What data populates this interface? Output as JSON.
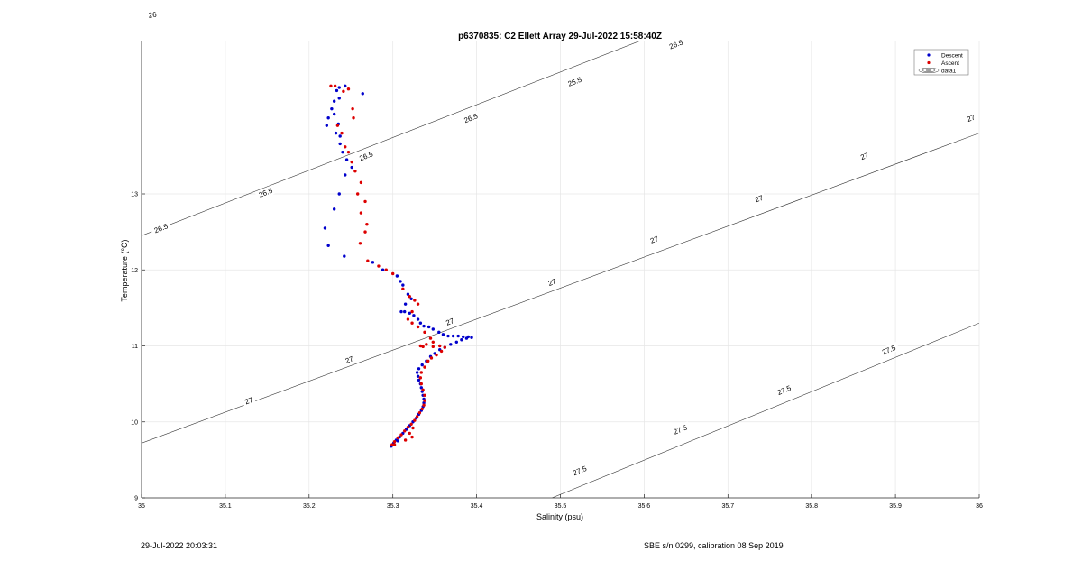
{
  "footer": {
    "left": "29-Jul-2022 20:03:31",
    "right": "SBE s/n 0299, calibration 08 Sep 2019"
  },
  "chart_data": {
    "type": "scatter",
    "title": "p6370835: C2 Ellett Array 29-Jul-2022 15:58:40Z",
    "xlabel": "Salinity (psu)",
    "ylabel": "Temperature (°C)",
    "xlim": [
      35,
      36
    ],
    "ylim": [
      9,
      15.4
    ],
    "xticks": [
      35,
      35.1,
      35.2,
      35.3,
      35.4,
      35.5,
      35.6,
      35.7,
      35.8,
      35.9,
      36
    ],
    "xtick_labels": [
      "35",
      "35.1",
      "35.2",
      "35.3",
      "35.4",
      "35.5",
      "35.6",
      "35.7",
      "35.8",
      "35.9",
      "36"
    ],
    "yticks": [
      9,
      10,
      11,
      12,
      13
    ],
    "ytick_labels": [
      "9",
      "10",
      "11",
      "12",
      "13"
    ],
    "grid": true,
    "legend": {
      "position": "top-right",
      "entries": [
        "Descent",
        "Ascent",
        "data1"
      ]
    },
    "contours": [
      {
        "label": "26",
        "points": [
          [
            35.0,
            15.35
          ],
          [
            35.035,
            15.4
          ]
        ],
        "label_positions": [
          [
            35.013,
            15.36
          ]
        ]
      },
      {
        "label": "26.5",
        "points": [
          [
            35.0,
            12.45
          ],
          [
            35.68,
            15.38
          ]
        ],
        "label_positions": [
          [
            35.023,
            12.55
          ],
          [
            35.148,
            13.02
          ],
          [
            35.268,
            13.5
          ],
          [
            35.393,
            14.0
          ],
          [
            35.517,
            14.48
          ],
          [
            35.638,
            14.97
          ]
        ]
      },
      {
        "label": "27",
        "points": [
          [
            35.0,
            9.72
          ],
          [
            36.0,
            13.8
          ]
        ],
        "label_positions": [
          [
            35.128,
            10.28
          ],
          [
            35.248,
            10.82
          ],
          [
            35.368,
            11.32
          ],
          [
            35.49,
            11.84
          ],
          [
            35.612,
            12.4
          ],
          [
            35.737,
            12.94
          ],
          [
            35.863,
            13.5
          ],
          [
            35.99,
            14.0
          ]
        ]
      },
      {
        "label": "27.5",
        "points": [
          [
            35.49,
            9.0
          ],
          [
            36.0,
            11.3
          ]
        ],
        "label_positions": [
          [
            35.523,
            9.36
          ],
          [
            35.643,
            9.9
          ],
          [
            35.767,
            10.42
          ],
          [
            35.892,
            10.95
          ]
        ]
      }
    ],
    "series": [
      {
        "name": "Descent",
        "color": "#0000cc",
        "points": [
          [
            35.236,
            14.4
          ],
          [
            35.243,
            14.42
          ],
          [
            35.233,
            14.36
          ],
          [
            35.264,
            14.32
          ],
          [
            35.236,
            14.26
          ],
          [
            35.23,
            14.22
          ],
          [
            35.227,
            14.12
          ],
          [
            35.23,
            14.05
          ],
          [
            35.223,
            14.0
          ],
          [
            35.221,
            13.9
          ],
          [
            35.235,
            13.92
          ],
          [
            35.232,
            13.8
          ],
          [
            35.237,
            13.76
          ],
          [
            35.237,
            13.66
          ],
          [
            35.24,
            13.55
          ],
          [
            35.245,
            13.45
          ],
          [
            35.251,
            13.35
          ],
          [
            35.243,
            13.25
          ],
          [
            35.236,
            13.0
          ],
          [
            35.23,
            12.8
          ],
          [
            35.219,
            12.55
          ],
          [
            35.223,
            12.32
          ],
          [
            35.242,
            12.18
          ],
          [
            35.276,
            12.1
          ],
          [
            35.288,
            12.0
          ],
          [
            35.305,
            11.92
          ],
          [
            35.309,
            11.85
          ],
          [
            35.312,
            11.8
          ],
          [
            35.318,
            11.68
          ],
          [
            35.322,
            11.62
          ],
          [
            35.315,
            11.55
          ],
          [
            35.31,
            11.45
          ],
          [
            35.314,
            11.45
          ],
          [
            35.32,
            11.43
          ],
          [
            35.325,
            11.4
          ],
          [
            35.33,
            11.35
          ],
          [
            35.333,
            11.3
          ],
          [
            35.337,
            11.26
          ],
          [
            35.343,
            11.25
          ],
          [
            35.348,
            11.22
          ],
          [
            35.355,
            11.18
          ],
          [
            35.36,
            11.15
          ],
          [
            35.366,
            11.13
          ],
          [
            35.372,
            11.13
          ],
          [
            35.378,
            11.13
          ],
          [
            35.384,
            11.12
          ],
          [
            35.39,
            11.12
          ],
          [
            35.394,
            11.11
          ],
          [
            35.388,
            11.1
          ],
          [
            35.382,
            11.08
          ],
          [
            35.376,
            11.05
          ],
          [
            35.369,
            11.02
          ],
          [
            35.362,
            10.98
          ],
          [
            35.356,
            10.95
          ],
          [
            35.35,
            10.9
          ],
          [
            35.345,
            10.86
          ],
          [
            35.34,
            10.8
          ],
          [
            35.335,
            10.75
          ],
          [
            35.331,
            10.7
          ],
          [
            35.329,
            10.65
          ],
          [
            35.33,
            10.6
          ],
          [
            35.331,
            10.55
          ],
          [
            35.333,
            10.5
          ],
          [
            35.334,
            10.45
          ],
          [
            35.335,
            10.4
          ],
          [
            35.336,
            10.35
          ],
          [
            35.337,
            10.3
          ],
          [
            35.337,
            10.25
          ],
          [
            35.336,
            10.2
          ],
          [
            35.334,
            10.15
          ],
          [
            35.331,
            10.1
          ],
          [
            35.328,
            10.05
          ],
          [
            35.324,
            10.0
          ],
          [
            35.32,
            9.95
          ],
          [
            35.316,
            9.9
          ],
          [
            35.312,
            9.85
          ],
          [
            35.308,
            9.8
          ],
          [
            35.304,
            9.76
          ],
          [
            35.301,
            9.72
          ],
          [
            35.298,
            9.68
          ],
          [
            35.3,
            9.7
          ],
          [
            35.306,
            9.75
          ]
        ]
      },
      {
        "name": "Ascent",
        "color": "#dd0000",
        "points": [
          [
            35.226,
            14.42
          ],
          [
            35.231,
            14.42
          ],
          [
            35.241,
            14.35
          ],
          [
            35.247,
            14.38
          ],
          [
            35.252,
            14.12
          ],
          [
            35.253,
            14.0
          ],
          [
            35.234,
            13.9
          ],
          [
            35.239,
            13.8
          ],
          [
            35.243,
            13.62
          ],
          [
            35.247,
            13.55
          ],
          [
            35.251,
            13.42
          ],
          [
            35.255,
            13.3
          ],
          [
            35.262,
            13.15
          ],
          [
            35.258,
            13.0
          ],
          [
            35.267,
            12.9
          ],
          [
            35.262,
            12.75
          ],
          [
            35.269,
            12.6
          ],
          [
            35.267,
            12.5
          ],
          [
            35.261,
            12.35
          ],
          [
            35.27,
            12.12
          ],
          [
            35.283,
            12.05
          ],
          [
            35.292,
            12.0
          ],
          [
            35.3,
            11.95
          ],
          [
            35.312,
            11.75
          ],
          [
            35.32,
            11.65
          ],
          [
            35.326,
            11.6
          ],
          [
            35.33,
            11.55
          ],
          [
            35.323,
            11.45
          ],
          [
            35.318,
            11.35
          ],
          [
            35.323,
            11.3
          ],
          [
            35.33,
            11.25
          ],
          [
            35.338,
            11.18
          ],
          [
            35.345,
            11.1
          ],
          [
            35.348,
            11.05
          ],
          [
            35.34,
            11.02
          ],
          [
            35.333,
            11.0
          ],
          [
            35.336,
            10.99
          ],
          [
            35.348,
            10.99
          ],
          [
            35.356,
            11.0
          ],
          [
            35.362,
            10.98
          ],
          [
            35.358,
            10.93
          ],
          [
            35.352,
            10.88
          ],
          [
            35.346,
            10.84
          ],
          [
            35.342,
            10.8
          ],
          [
            35.338,
            10.72
          ],
          [
            35.334,
            10.65
          ],
          [
            35.333,
            10.58
          ],
          [
            35.334,
            10.5
          ],
          [
            35.336,
            10.42
          ],
          [
            35.338,
            10.35
          ],
          [
            35.338,
            10.28
          ],
          [
            35.337,
            10.22
          ],
          [
            35.335,
            10.17
          ],
          [
            35.332,
            10.12
          ],
          [
            35.329,
            10.07
          ],
          [
            35.326,
            10.02
          ],
          [
            35.322,
            9.97
          ],
          [
            35.318,
            9.93
          ],
          [
            35.314,
            9.88
          ],
          [
            35.31,
            9.83
          ],
          [
            35.306,
            9.79
          ],
          [
            35.302,
            9.74
          ],
          [
            35.299,
            9.7
          ],
          [
            35.302,
            9.7
          ],
          [
            35.315,
            9.76
          ],
          [
            35.323,
            9.8
          ],
          [
            35.32,
            9.85
          ],
          [
            35.324,
            9.92
          ]
        ]
      }
    ]
  }
}
